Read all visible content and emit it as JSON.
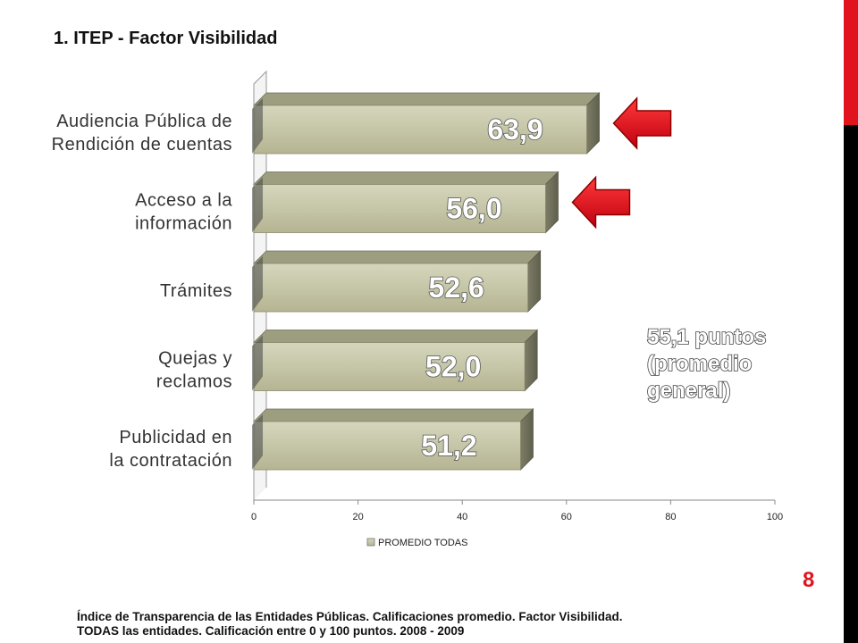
{
  "slide": {
    "title": "1. ITEP - Factor Visibilidad",
    "page_number": "8",
    "footer_line1": "Índice de Transparencia de las Entidades Públicas. Calificaciones promedio. Factor Visibilidad.",
    "footer_line2": "TODAS las entidades. Calificación entre 0 y 100 puntos. 2008 - 2009",
    "accent_color": "#e1131c",
    "bar_color": "#c3c3a3"
  },
  "annotation": {
    "line1": "55,1 puntos",
    "line2": "(promedio",
    "line3": "general)"
  },
  "chart_data": {
    "type": "bar",
    "orientation": "horizontal",
    "categories": [
      [
        "Audiencia Pública de",
        "Rendición de cuentas"
      ],
      [
        "Acceso a la",
        "información"
      ],
      [
        "Trámites"
      ],
      [
        "Quejas y",
        "reclamos"
      ],
      [
        "Publicidad en",
        "la contratación"
      ]
    ],
    "series": [
      {
        "name": "PROMEDIO TODAS",
        "values": [
          63.9,
          56.0,
          52.6,
          52.0,
          51.2
        ]
      }
    ],
    "data_labels": [
      "63,9",
      "56,0",
      "52,6",
      "52,0",
      "51,2"
    ],
    "xlim": [
      0,
      100
    ],
    "xticks": [
      "0",
      "20",
      "40",
      "60",
      "80",
      "100"
    ],
    "legend": "bottom-center",
    "grid": false,
    "highlighted_categories": [
      0,
      1
    ]
  }
}
